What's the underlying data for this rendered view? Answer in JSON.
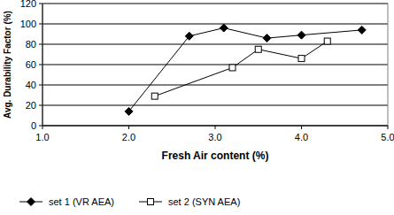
{
  "chart_data": {
    "type": "line",
    "x_label": "Fresh Air content (%)",
    "y_label": "Avg. Durability Factor (%)",
    "xlim": [
      1,
      5
    ],
    "xticks": [
      {
        "value": 1,
        "label": "1.0"
      },
      {
        "value": 2,
        "label": "2.0"
      },
      {
        "value": 3,
        "label": "3.0"
      },
      {
        "value": 4,
        "label": "4.0"
      },
      {
        "value": 5,
        "label": "5.0"
      }
    ],
    "ylim": [
      0,
      120
    ],
    "yticks": [
      0,
      20,
      40,
      60,
      80,
      100,
      120
    ],
    "grid": true,
    "legend": "bottom",
    "series": [
      {
        "name": "set 1 (VR AEA)",
        "color": "#000000",
        "marker": "diamond",
        "line_style": "solid",
        "x": [
          2.0,
          2.7,
          3.1,
          3.6,
          4.0,
          4.7
        ],
        "values": [
          14,
          88,
          96,
          86,
          89,
          94
        ]
      },
      {
        "name": "set 2 (SYN AEA)",
        "color": "#000000",
        "marker": "square",
        "line_style": "solid",
        "x": [
          2.3,
          3.2,
          3.5,
          4.0,
          4.3
        ],
        "values": [
          29,
          57,
          75,
          66,
          83
        ]
      }
    ]
  }
}
